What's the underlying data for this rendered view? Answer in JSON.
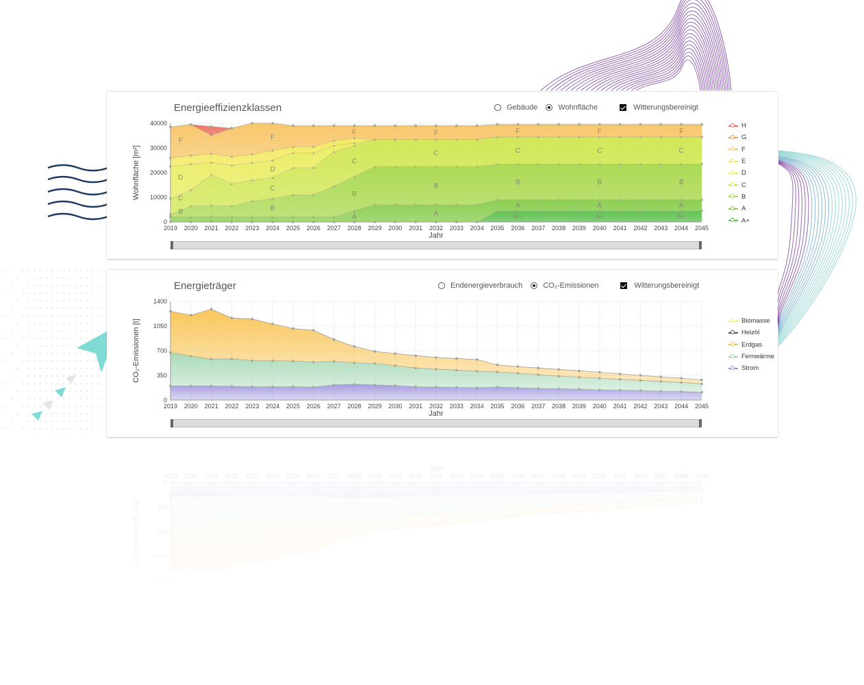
{
  "chart_data": [
    {
      "type": "area",
      "title": "Energieeffizienzklassen",
      "xlabel": "Jahr",
      "ylabel": "Wohnfläche [m²]",
      "ylim": [
        0,
        40000
      ],
      "yticks": [
        0,
        10000,
        20000,
        30000,
        40000
      ],
      "x": [
        2019,
        2020,
        2021,
        2022,
        2023,
        2024,
        2025,
        2026,
        2027,
        2028,
        2029,
        2030,
        2031,
        2032,
        2033,
        2034,
        2035,
        2036,
        2037,
        2038,
        2039,
        2040,
        2041,
        2042,
        2043,
        2044,
        2045
      ],
      "legend_position": "right",
      "controls": {
        "options": [
          "Gebäude",
          "Wohnfläche"
        ],
        "selected": "Wohnfläche",
        "checkbox": "Witterungsbereinigt",
        "checked": true
      },
      "series": [
        {
          "name": "A+",
          "color": "#5abf4a",
          "values": [
            0,
            0,
            200,
            0,
            0,
            0,
            0,
            0,
            0,
            0,
            0,
            0,
            0,
            0,
            0,
            0,
            4500,
            4500,
            4500,
            4500,
            4500,
            4500,
            4500,
            4500,
            4500,
            4500,
            4500
          ]
        },
        {
          "name": "A",
          "color": "#86cc4a",
          "values": [
            2000,
            2000,
            2000,
            2000,
            2000,
            2000,
            2000,
            2000,
            2000,
            4500,
            7000,
            7000,
            7000,
            7000,
            7000,
            7000,
            4500,
            4500,
            4500,
            4500,
            4500,
            4500,
            4500,
            4500,
            4500,
            4500,
            4500
          ]
        },
        {
          "name": "B",
          "color": "#a8d84c",
          "values": [
            1000,
            4500,
            4500,
            4500,
            6500,
            7500,
            9000,
            9000,
            12500,
            14000,
            15500,
            15500,
            15500,
            15500,
            15500,
            15500,
            14500,
            14500,
            14500,
            14500,
            14500,
            14500,
            14500,
            14500,
            14500,
            14500,
            14500
          ]
        },
        {
          "name": "C",
          "color": "#d0e650",
          "values": [
            6500,
            6500,
            12500,
            9000,
            8500,
            8500,
            11000,
            11000,
            14000,
            12500,
            11000,
            11000,
            11000,
            11000,
            11000,
            11000,
            11000,
            11000,
            11000,
            11000,
            11000,
            11000,
            11000,
            11000,
            11000,
            11000,
            11000
          ]
        },
        {
          "name": "D",
          "color": "#e8ec5a",
          "values": [
            13000,
            10500,
            5000,
            7500,
            7000,
            7000,
            6000,
            6000,
            2500,
            1000,
            0,
            0,
            0,
            0,
            0,
            0,
            0,
            0,
            0,
            0,
            0,
            0,
            0,
            0,
            0,
            0,
            0
          ]
        },
        {
          "name": "E",
          "color": "#f3e858",
          "values": [
            3500,
            3500,
            3500,
            3500,
            3500,
            4000,
            2500,
            2500,
            2000,
            2000,
            0,
            0,
            0,
            0,
            0,
            0,
            0,
            0,
            0,
            0,
            0,
            0,
            0,
            0,
            0,
            0,
            0
          ]
        },
        {
          "name": "F",
          "color": "#f8c464",
          "values": [
            12500,
            12500,
            7500,
            11500,
            12500,
            11000,
            8500,
            8500,
            6000,
            5000,
            5500,
            5500,
            5500,
            5500,
            5500,
            5500,
            5000,
            5000,
            5000,
            5000,
            5000,
            5000,
            5000,
            5000,
            5000,
            5000,
            5000
          ]
        },
        {
          "name": "G",
          "color": "#f0a060",
          "values": [
            0,
            0,
            0,
            0,
            0,
            0,
            0,
            0,
            0,
            0,
            0,
            0,
            0,
            0,
            0,
            0,
            0,
            0,
            0,
            0,
            0,
            0,
            0,
            0,
            0,
            0,
            0
          ]
        },
        {
          "name": "H",
          "color": "#ea6a5a",
          "values": [
            0,
            0,
            3500,
            0,
            0,
            0,
            0,
            0,
            0,
            0,
            0,
            0,
            0,
            0,
            0,
            0,
            0,
            0,
            0,
            0,
            0,
            0,
            0,
            0,
            0,
            0,
            0
          ]
        }
      ],
      "area_labels": [
        {
          "text": "F",
          "x": [
            2019.5,
            2024,
            2028,
            2032,
            2036,
            2040,
            2044
          ]
        },
        {
          "text": "D",
          "x": [
            2019.5,
            2024
          ]
        },
        {
          "text": "C",
          "x": [
            2019.5,
            2024,
            2028,
            2032,
            2036,
            2040,
            2044
          ]
        },
        {
          "text": "B",
          "x": [
            2019.5,
            2024,
            2028,
            2032,
            2036,
            2040,
            2044
          ]
        },
        {
          "text": "A",
          "x": [
            2028,
            2032,
            2036,
            2040,
            2044
          ]
        },
        {
          "text": "A+",
          "x": [
            2036,
            2040,
            2044
          ]
        }
      ],
      "legend": [
        "H",
        "G",
        "F",
        "E",
        "D",
        "C",
        "B",
        "A",
        "A+"
      ]
    },
    {
      "type": "area",
      "title": "Energieträger",
      "xlabel": "Jahr",
      "ylabel": "CO₂-Emissionen [t]",
      "ylim": [
        0,
        1400
      ],
      "yticks": [
        0,
        350,
        700,
        1050,
        1400
      ],
      "x": [
        2019,
        2020,
        2021,
        2022,
        2023,
        2024,
        2025,
        2026,
        2027,
        2028,
        2029,
        2030,
        2031,
        2032,
        2033,
        2034,
        2035,
        2036,
        2037,
        2038,
        2039,
        2040,
        2041,
        2042,
        2043,
        2044,
        2045
      ],
      "legend_position": "right",
      "controls": {
        "options": [
          "Endenergieverbrauch",
          "CO₂-Emissionen"
        ],
        "selected": "CO₂-Emissionen",
        "checkbox": "Witterungsbereinigt",
        "checked": true
      },
      "series": [
        {
          "name": "Strom",
          "color": "#9a92dc",
          "values": [
            200,
            200,
            200,
            195,
            190,
            190,
            190,
            185,
            215,
            225,
            215,
            205,
            190,
            185,
            180,
            175,
            185,
            175,
            165,
            160,
            155,
            145,
            140,
            135,
            125,
            120,
            110
          ]
        },
        {
          "name": "Fernwärme",
          "color": "#a0d6b0",
          "values": [
            475,
            425,
            380,
            390,
            370,
            370,
            365,
            355,
            335,
            305,
            305,
            285,
            265,
            255,
            245,
            235,
            215,
            205,
            195,
            180,
            170,
            165,
            155,
            145,
            140,
            130,
            120
          ]
        },
        {
          "name": "Erdgas",
          "color": "#f8c04a",
          "values": [
            585,
            580,
            710,
            580,
            590,
            520,
            460,
            450,
            310,
            230,
            170,
            170,
            175,
            165,
            165,
            165,
            100,
            95,
            95,
            95,
            90,
            85,
            75,
            70,
            65,
            60,
            55
          ]
        },
        {
          "name": "Heizöl",
          "color": "#555555",
          "values": [
            0,
            0,
            0,
            0,
            0,
            0,
            0,
            0,
            0,
            0,
            0,
            0,
            0,
            0,
            0,
            0,
            0,
            0,
            0,
            0,
            0,
            0,
            0,
            0,
            0,
            0,
            0
          ]
        },
        {
          "name": "Biomasse",
          "color": "#f4ee7a",
          "values": [
            0,
            0,
            0,
            0,
            0,
            0,
            0,
            0,
            0,
            0,
            0,
            0,
            0,
            0,
            0,
            0,
            0,
            0,
            0,
            0,
            0,
            0,
            0,
            0,
            0,
            0,
            0
          ]
        }
      ],
      "legend": [
        "Biomasse",
        "Heizöl",
        "Erdgas",
        "Fernwärme",
        "Strom"
      ]
    }
  ]
}
